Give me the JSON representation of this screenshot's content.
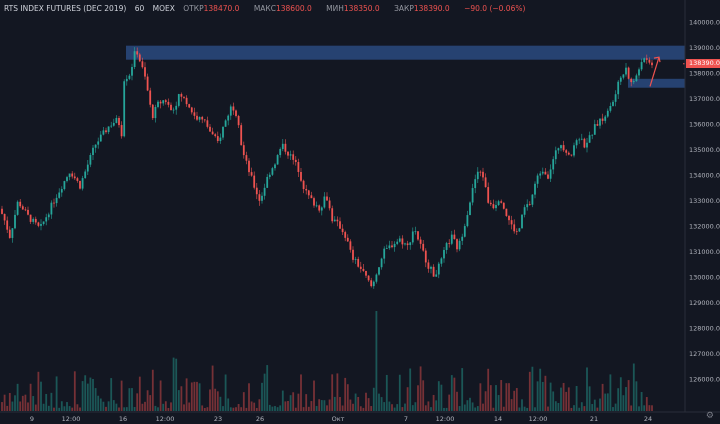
{
  "header": {
    "symbol": "RTS INDEX FUTURES (DEC 2019)",
    "interval": "60",
    "exchange": "MOEX",
    "open_label": "ОТКР",
    "open": "138470.0",
    "high_label": "МАКС",
    "high": "138600.0",
    "low_label": "МИН",
    "low": "138350.0",
    "close_label": "ЗАКР",
    "close": "138390.0",
    "change": "−90.0 (−0.06%)"
  },
  "last_price": "138390.0",
  "colors": {
    "up": "#26a69a",
    "down": "#ef5350",
    "zone": "#2a4a7f",
    "background": "#131722"
  },
  "chart_data": {
    "type": "candlestick",
    "price_axis": {
      "min": 125000,
      "max": 140500,
      "ticks": [
        "140000.0",
        "139000.0",
        "138000.0",
        "137000.0",
        "136000.0",
        "135000.0",
        "134000.0",
        "133000.0",
        "132000.0",
        "131000.0",
        "130000.0",
        "129000.0",
        "128000.0",
        "127000.0",
        "126000.0"
      ]
    },
    "time_axis": [
      "9",
      "12:00",
      "16",
      "12:00",
      "23",
      "26",
      "Окт",
      "7",
      "12:00",
      "14",
      "12:00",
      "21",
      "24"
    ],
    "zones": [
      {
        "from": 138550,
        "to": 139100
      },
      {
        "from": 137450,
        "to": 137800
      }
    ],
    "path_points": [
      [
        0,
        132700
      ],
      [
        5,
        132200
      ],
      [
        10,
        131600
      ],
      [
        18,
        133000
      ],
      [
        28,
        132400
      ],
      [
        40,
        131900
      ],
      [
        55,
        133100
      ],
      [
        70,
        134200
      ],
      [
        80,
        133600
      ],
      [
        95,
        135200
      ],
      [
        110,
        136000
      ],
      [
        118,
        136200
      ],
      [
        122,
        135600
      ],
      [
        124,
        137800
      ],
      [
        130,
        138000
      ],
      [
        136,
        139000
      ],
      [
        140,
        138500
      ],
      [
        146,
        137700
      ],
      [
        152,
        136300
      ],
      [
        158,
        136800
      ],
      [
        165,
        137000
      ],
      [
        172,
        136500
      ],
      [
        180,
        137200
      ],
      [
        188,
        136800
      ],
      [
        195,
        136300
      ],
      [
        205,
        136100
      ],
      [
        212,
        135600
      ],
      [
        218,
        135300
      ],
      [
        224,
        136000
      ],
      [
        232,
        136800
      ],
      [
        238,
        136300
      ],
      [
        242,
        135000
      ],
      [
        248,
        134300
      ],
      [
        254,
        133600
      ],
      [
        260,
        133000
      ],
      [
        268,
        134000
      ],
      [
        276,
        134600
      ],
      [
        282,
        135200
      ],
      [
        290,
        134800
      ],
      [
        298,
        134300
      ],
      [
        305,
        133400
      ],
      [
        312,
        133000
      ],
      [
        320,
        132700
      ],
      [
        326,
        133300
      ],
      [
        332,
        132300
      ],
      [
        340,
        132000
      ],
      [
        346,
        131600
      ],
      [
        352,
        130800
      ],
      [
        360,
        130400
      ],
      [
        366,
        130000
      ],
      [
        372,
        129600
      ],
      [
        378,
        130400
      ],
      [
        384,
        131000
      ],
      [
        392,
        131300
      ],
      [
        400,
        131500
      ],
      [
        408,
        131200
      ],
      [
        414,
        132000
      ],
      [
        420,
        131300
      ],
      [
        428,
        130500
      ],
      [
        434,
        130100
      ],
      [
        440,
        130500
      ],
      [
        446,
        131200
      ],
      [
        452,
        131600
      ],
      [
        458,
        131100
      ],
      [
        464,
        132000
      ],
      [
        470,
        133000
      ],
      [
        476,
        134000
      ],
      [
        482,
        134200
      ],
      [
        488,
        133000
      ],
      [
        494,
        132800
      ],
      [
        500,
        133200
      ],
      [
        506,
        132500
      ],
      [
        512,
        132000
      ],
      [
        518,
        131700
      ],
      [
        524,
        132700
      ],
      [
        530,
        132900
      ],
      [
        536,
        133800
      ],
      [
        542,
        134300
      ],
      [
        548,
        134000
      ],
      [
        554,
        134700
      ],
      [
        560,
        135300
      ],
      [
        566,
        135000
      ],
      [
        572,
        134800
      ],
      [
        578,
        135600
      ],
      [
        584,
        135200
      ],
      [
        590,
        135500
      ],
      [
        596,
        136000
      ],
      [
        602,
        136200
      ],
      [
        608,
        136500
      ],
      [
        614,
        137000
      ],
      [
        620,
        137800
      ],
      [
        626,
        138300
      ],
      [
        630,
        137600
      ],
      [
        636,
        137800
      ],
      [
        642,
        138600
      ],
      [
        648,
        138400
      ],
      [
        654,
        138390
      ]
    ],
    "annotation": {
      "type": "arrow",
      "color": "#ef5350",
      "from": [
        650,
        137500
      ],
      "to": [
        659,
        138650
      ]
    },
    "volume": {
      "seed": 7,
      "base": 0.25
    }
  }
}
